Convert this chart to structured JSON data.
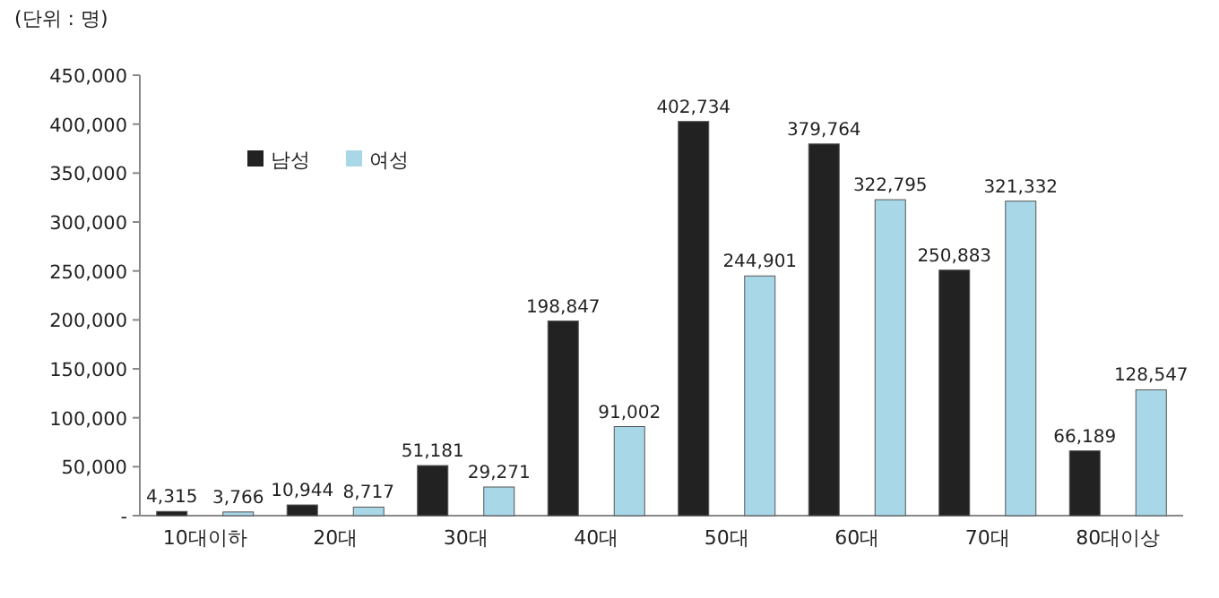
{
  "chart_data": {
    "type": "bar",
    "annotations": [
      "(단위 : 명)"
    ],
    "categories": [
      "10대이하",
      "20대",
      "30대",
      "40대",
      "50대",
      "60대",
      "70대",
      "80대이상"
    ],
    "series": [
      {
        "name": "남성",
        "color": "#222222",
        "values": [
          4315,
          10944,
          51181,
          198847,
          402734,
          379764,
          250883,
          66189
        ],
        "value_labels": [
          "4,315",
          "10,944",
          "51,181",
          "198,847",
          "402,734",
          "379,764",
          "250,883",
          "66,189"
        ]
      },
      {
        "name": "여성",
        "color": "#a8d8e8",
        "values": [
          3766,
          8717,
          29271,
          91002,
          244901,
          322795,
          321332,
          128547
        ],
        "value_labels": [
          "3,766",
          "8,717",
          "29,271",
          "91,002",
          "244,901",
          "322,795",
          "321,332",
          "128,547"
        ]
      }
    ],
    "ylim": [
      0,
      450000
    ],
    "yticks": [
      {
        "value": 0,
        "label": "-"
      },
      {
        "value": 50000,
        "label": "50,000"
      },
      {
        "value": 100000,
        "label": "100,000"
      },
      {
        "value": 150000,
        "label": "150,000"
      },
      {
        "value": 200000,
        "label": "200,000"
      },
      {
        "value": 250000,
        "label": "250,000"
      },
      {
        "value": 300000,
        "label": "300,000"
      },
      {
        "value": 350000,
        "label": "350,000"
      },
      {
        "value": 400000,
        "label": "400,000"
      },
      {
        "value": 450000,
        "label": "450,000"
      }
    ],
    "legend": "top left",
    "grid": false
  }
}
